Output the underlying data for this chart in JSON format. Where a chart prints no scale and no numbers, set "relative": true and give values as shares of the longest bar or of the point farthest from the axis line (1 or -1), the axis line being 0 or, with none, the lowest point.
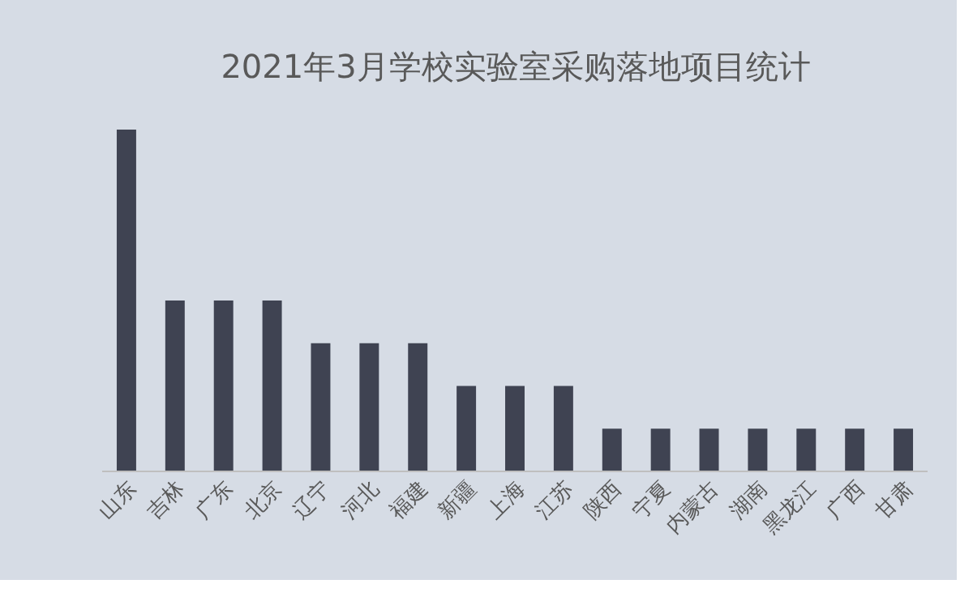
{
  "chart_data": {
    "type": "bar",
    "title": "2021年3月学校实验室采购落地项目统计",
    "relative": true,
    "categories": [
      "山东",
      "吉林",
      "广东",
      "北京",
      "辽宁",
      "河北",
      "福建",
      "新疆",
      "上海",
      "江苏",
      "陕西",
      "宁夏",
      "内蒙古",
      "湖南",
      "黑龙江",
      "广西",
      "甘肃"
    ],
    "values": [
      1,
      0.5,
      0.5,
      0.5,
      0.375,
      0.375,
      0.375,
      0.25,
      0.25,
      0.25,
      0.125,
      0.125,
      0.125,
      0.125,
      0.125,
      0.125,
      0.125
    ],
    "color": "#3f4352"
  }
}
